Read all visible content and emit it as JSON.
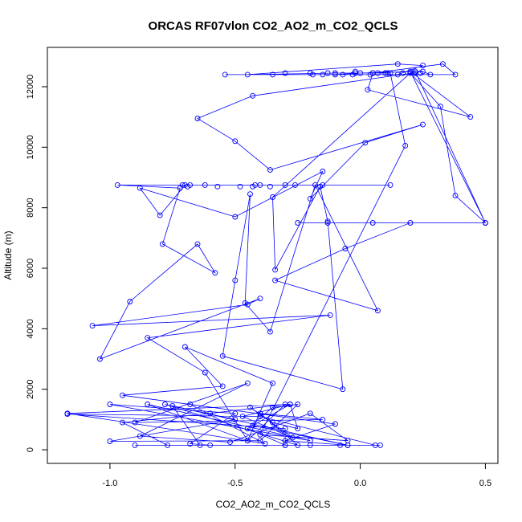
{
  "chart_data": {
    "type": "scatter",
    "title": "ORCAS RF07vlon CO2_AO2_m_CO2_QCLS",
    "xlabel": "CO2_AO2_m_CO2_QCLS",
    "ylabel": "Altitude (m)",
    "xlim": [
      -1.25,
      0.55
    ],
    "ylim": [
      -450,
      13300
    ],
    "x_ticks": [
      -1.0,
      -0.5,
      0.0,
      0.5
    ],
    "x_tick_labels": [
      "-1.0",
      "-0.5",
      "0.0",
      "0.5"
    ],
    "y_ticks": [
      0,
      2000,
      4000,
      6000,
      8000,
      10000,
      12000
    ],
    "y_tick_labels": [
      "0",
      "2000",
      "4000",
      "6000",
      "8000",
      "10000",
      "12000"
    ],
    "grid": false,
    "markers": "open-circle",
    "connected": true,
    "color": "#0000ff",
    "series": [
      {
        "points": [
          [
            0.08,
            150
          ],
          [
            -0.9,
            150
          ],
          [
            -0.77,
            150
          ],
          [
            -0.95,
            900
          ],
          [
            -0.6,
            1200
          ],
          [
            -0.3,
            1500
          ],
          [
            -0.45,
            300
          ],
          [
            -0.85,
            1500
          ],
          [
            -0.2,
            300
          ],
          [
            -1.0,
            1500
          ],
          [
            -0.5,
            1200
          ],
          [
            -0.68,
            200
          ],
          [
            -0.6,
            150
          ],
          [
            -0.3,
            150
          ],
          [
            -0.2,
            150
          ],
          [
            -0.08,
            150
          ],
          [
            0.06,
            150
          ],
          [
            -0.4,
            1100
          ],
          [
            -1.17,
            1180
          ],
          [
            -0.3,
            700
          ],
          [
            -0.3,
            150
          ],
          [
            -0.45,
            700
          ],
          [
            -0.35,
            1400
          ],
          [
            -0.25,
            1500
          ],
          [
            -0.4,
            300
          ],
          [
            -1.0,
            280
          ],
          [
            -0.5,
            1000
          ],
          [
            -0.75,
            1450
          ],
          [
            -0.64,
            150
          ],
          [
            -0.05,
            150
          ],
          [
            -0.3,
            300
          ],
          [
            -0.1,
            850
          ],
          [
            -0.95,
            1800
          ],
          [
            -0.55,
            2100
          ],
          [
            -0.7,
            3400
          ],
          [
            -0.35,
            2200
          ],
          [
            -0.45,
            300
          ],
          [
            -0.62,
            2550
          ],
          [
            -0.85,
            3700
          ],
          [
            -0.12,
            4450
          ],
          [
            -1.07,
            4100
          ],
          [
            -0.45,
            4800
          ],
          [
            -0.4,
            5000
          ],
          [
            -1.04,
            3000
          ],
          [
            -0.92,
            4900
          ],
          [
            -0.65,
            6800
          ],
          [
            -0.58,
            5850
          ],
          [
            -0.79,
            6800
          ],
          [
            -0.72,
            8650
          ],
          [
            -0.97,
            8750
          ],
          [
            -0.3,
            8750
          ],
          [
            0.12,
            8750
          ],
          [
            -0.4,
            8750
          ],
          [
            -0.7,
            8750
          ],
          [
            -0.8,
            7750
          ],
          [
            -0.88,
            8650
          ],
          [
            -0.5,
            7700
          ],
          [
            -0.15,
            9200
          ],
          [
            -0.2,
            8300
          ],
          [
            0.02,
            10150
          ],
          [
            0.25,
            10750
          ],
          [
            -0.36,
            9250
          ],
          [
            -0.5,
            10200
          ],
          [
            -0.65,
            10950
          ],
          [
            -0.43,
            11700
          ],
          [
            0.25,
            12500
          ],
          [
            0.28,
            12400
          ],
          [
            -0.54,
            12400
          ],
          [
            0.38,
            12400
          ],
          [
            0.33,
            12750
          ],
          [
            0.05,
            12450
          ],
          [
            0.03,
            11900
          ],
          [
            0.44,
            11000
          ],
          [
            0.2,
            12500
          ],
          [
            0.5,
            7500
          ],
          [
            -0.13,
            7500
          ],
          [
            0.05,
            7500
          ],
          [
            -0.25,
            7500
          ],
          [
            0.2,
            7500
          ],
          [
            -0.06,
            6650
          ],
          [
            -0.34,
            5600
          ],
          [
            0.07,
            4600
          ],
          [
            -0.18,
            8750
          ],
          [
            -0.36,
            3900
          ],
          [
            -0.46,
            4850
          ],
          [
            -0.44,
            8450
          ],
          [
            -0.5,
            5600
          ],
          [
            -0.55,
            3100
          ],
          [
            -0.07,
            2000
          ],
          [
            -0.13,
            7550
          ],
          [
            -0.16,
            8700
          ],
          [
            -0.34,
            5950
          ],
          [
            -0.35,
            8350
          ],
          [
            0.2,
            12450
          ],
          [
            0.32,
            11350
          ],
          [
            0.38,
            8400
          ],
          [
            0.5,
            7500
          ],
          [
            0.22,
            12500
          ],
          [
            0.0,
            12450
          ],
          [
            -0.1,
            12400
          ],
          [
            0.15,
            12400
          ],
          [
            0.25,
            12700
          ],
          [
            0.15,
            12750
          ],
          [
            -0.45,
            12400
          ],
          [
            -0.1,
            12450
          ],
          [
            0.12,
            12450
          ],
          [
            0.18,
            10050
          ],
          [
            -0.4,
            500
          ],
          [
            -0.05,
            300
          ],
          [
            -0.2,
            1200
          ],
          [
            -0.52,
            250
          ],
          [
            -0.88,
            450
          ],
          [
            -0.45,
            2200
          ],
          [
            -0.9,
            900
          ],
          [
            -0.15,
            1000
          ],
          [
            -0.4,
            1200
          ],
          [
            -0.25,
            150
          ],
          [
            -0.78,
            1500
          ],
          [
            -0.05,
            150
          ],
          [
            -0.43,
            800
          ],
          [
            -0.28,
            1500
          ],
          [
            -0.47,
            1100
          ],
          [
            -0.27,
            400
          ],
          [
            -0.44,
            1400
          ],
          [
            -0.35,
            900
          ],
          [
            -0.25,
            700
          ],
          [
            -0.28,
            1500
          ],
          [
            -1.17,
            1200
          ],
          [
            -0.38,
            200
          ],
          [
            -0.68,
            1500
          ]
        ],
        "scatter_only": [
          [
            0.22,
            12450
          ],
          [
            0.1,
            12450
          ],
          [
            -0.03,
            12400
          ],
          [
            -0.07,
            12400
          ],
          [
            -0.13,
            12450
          ],
          [
            -0.15,
            12400
          ],
          [
            -0.2,
            12450
          ],
          [
            -0.3,
            12450
          ],
          [
            -0.35,
            12400
          ],
          [
            -0.02,
            12450
          ],
          [
            0.05,
            12450
          ],
          [
            0.07,
            12450
          ],
          [
            0.11,
            12450
          ],
          [
            0.24,
            12450
          ],
          [
            0.17,
            12450
          ],
          [
            -0.19,
            12400
          ],
          [
            -0.02,
            12500
          ],
          [
            0.04,
            12400
          ],
          [
            -0.68,
            8750
          ],
          [
            -0.69,
            8700
          ],
          [
            -0.71,
            8750
          ],
          [
            -0.57,
            8700
          ],
          [
            -0.62,
            8750
          ],
          [
            -0.43,
            8700
          ],
          [
            -0.42,
            8750
          ],
          [
            -0.26,
            8750
          ],
          [
            -0.15,
            8750
          ],
          [
            -0.48,
            8700
          ],
          [
            -0.36,
            8700
          ]
        ]
      }
    ]
  }
}
